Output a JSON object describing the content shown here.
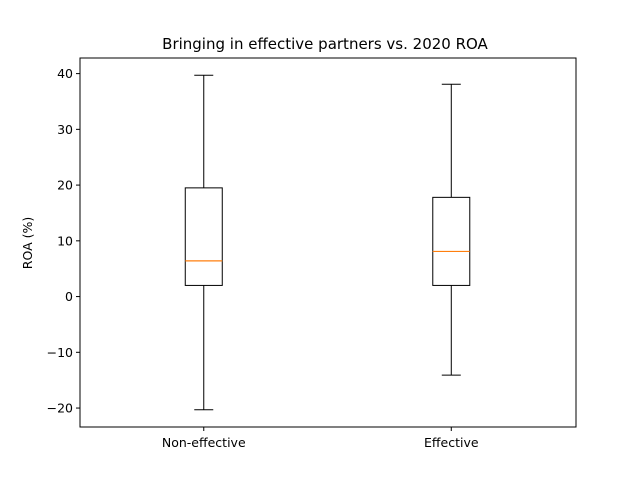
{
  "chart_data": {
    "type": "box",
    "title": "Bringing in effective partners vs. 2020 ROA",
    "xlabel": "",
    "ylabel": "ROA (%)",
    "ylim": [
      -23.4,
      42.8
    ],
    "yticks": [
      -20,
      -10,
      0,
      10,
      20,
      30,
      40
    ],
    "ytick_labels": [
      "−20",
      "−10",
      "0",
      "10",
      "20",
      "30",
      "40"
    ],
    "categories": [
      "Non-effective",
      "Effective"
    ],
    "boxes": [
      {
        "category": "Non-effective",
        "whisker_low": -20.3,
        "q1": 2.0,
        "median": 6.4,
        "q3": 19.5,
        "whisker_high": 39.7
      },
      {
        "category": "Effective",
        "whisker_low": -14.1,
        "q1": 2.0,
        "median": 8.1,
        "q3": 17.8,
        "whisker_high": 38.1
      }
    ],
    "grid": false,
    "colors": {
      "box": "#000000",
      "median": "#ff7f0e"
    }
  }
}
